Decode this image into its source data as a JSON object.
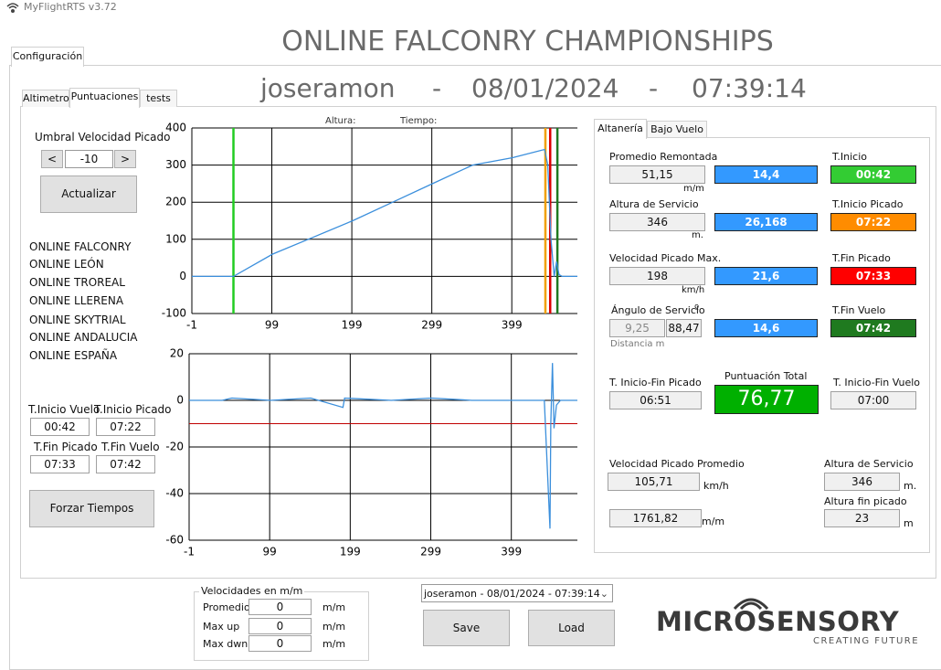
{
  "window": {
    "title": "MyFlightRTS v3.72"
  },
  "tabs": {
    "main": "Configuración",
    "sub": [
      "Altimetro",
      "Puntuaciones",
      "tests"
    ],
    "right": [
      "Altanería",
      "Bajo Vuelo"
    ]
  },
  "header": {
    "title": "ONLINE FALCONRY CHAMPIONSHIPS",
    "user": "joseramon",
    "separator": "-",
    "date": "08/01/2024",
    "time": "07:39:14"
  },
  "threshold": {
    "label": "Umbral Velocidad Picado",
    "prev": "<",
    "value": "-10",
    "next": ">",
    "button": "Actualizar"
  },
  "competitions": [
    "ONLINE FALCONRY",
    "ONLINE LEÓN",
    "ONLINE TROREAL",
    "ONLINE LLERENA",
    "ONLINE SKYTRIAL",
    "ONLINE ANDALUCIA",
    "ONLINE ESPAÑA"
  ],
  "times": {
    "labels": [
      "T.Inicio Vuelo",
      "T.Inicio Picado",
      "T.Fin Picado",
      "T.Fin Vuelo"
    ],
    "values": [
      "00:42",
      "07:22",
      "07:33",
      "07:42"
    ],
    "button": "Forzar Tiempos"
  },
  "chart_data": [
    {
      "type": "line",
      "annotations": [
        "Altura:",
        "Tiempo:"
      ],
      "x": [
        -1,
        51,
        100,
        150,
        200,
        250,
        300,
        350,
        400,
        440,
        444,
        448,
        452,
        455,
        458,
        462,
        481
      ],
      "series": [
        {
          "color": "#3b8fdc",
          "values": [
            0,
            0,
            60,
            105,
            150,
            200,
            250,
            300,
            320,
            342,
            300,
            100,
            0,
            40,
            5,
            0,
            0
          ]
        }
      ],
      "vlines": [
        {
          "x": 51,
          "color": "#22cc22"
        },
        {
          "x": 441,
          "color": "#f0a000"
        },
        {
          "x": 447,
          "color": "#dd0000"
        },
        {
          "x": 456,
          "color": "#1f7a1f"
        }
      ],
      "xlim": [
        -1,
        481
      ],
      "ylim": [
        -100,
        400
      ],
      "xticks": [
        -1,
        99,
        199,
        299,
        399
      ],
      "yticks": [
        -100,
        0,
        100,
        200,
        300,
        400
      ],
      "grid": true
    },
    {
      "type": "line",
      "x": [
        -1,
        40,
        52,
        100,
        150,
        190,
        192,
        250,
        300,
        350,
        400,
        440,
        445,
        447,
        448,
        450,
        452,
        455,
        460,
        481
      ],
      "series": [
        {
          "color": "#3b8fdc",
          "values": [
            0,
            0,
            1,
            0,
            1,
            -3,
            1,
            0,
            1,
            0,
            0,
            0,
            -40,
            -55,
            -10,
            16,
            -12,
            -2,
            0,
            0
          ]
        }
      ],
      "hlines": [
        {
          "y": -10,
          "color": "#c00000"
        }
      ],
      "xlim": [
        -1,
        481
      ],
      "ylim": [
        -60,
        20
      ],
      "xticks": [
        -1,
        99,
        199,
        299,
        399
      ],
      "yticks": [
        -60,
        -40,
        -20,
        0,
        20
      ],
      "grid": true
    }
  ],
  "results": {
    "rows": [
      {
        "label": "Promedio Remontada",
        "value": "51,15",
        "unit": "m/m",
        "score": "14,4"
      },
      {
        "label": "Altura de Servicio",
        "value": "346",
        "unit": "m.",
        "score": "26,168"
      },
      {
        "label": "Velocidad Picado Max.",
        "value": "198",
        "unit": "km/h",
        "score": "21,6"
      }
    ],
    "angle": {
      "label": "Ángulo de Servicio",
      "symbol": "º",
      "value": "9,25",
      "value2": "88,47",
      "score": "14,6",
      "note": "Distancia m"
    },
    "timers": [
      {
        "label": "T.Inicio",
        "value": "00:42",
        "color": "#33cc33"
      },
      {
        "label": "T.Inicio Picado",
        "value": "07:22",
        "color": "#ff8c00"
      },
      {
        "label": "T.Fin Picado",
        "value": "07:33",
        "color": "#ff0000"
      },
      {
        "label": "T.Fin Vuelo",
        "value": "07:42",
        "color": "#1f7a1f"
      }
    ],
    "dive_duration": {
      "label": "T. Inicio-Fin Picado",
      "value": "06:51"
    },
    "total": {
      "label": "Puntuación Total",
      "value": "76,77"
    },
    "flight_duration": {
      "label": "T. Inicio-Fin Vuelo",
      "value": "07:00"
    },
    "avg_speed": {
      "label": "Velocidad Picado Promedio",
      "value": "105,71",
      "unit": "km/h",
      "value2": "1761,82",
      "unit2": "m/m"
    },
    "heights": {
      "label": "Altura de Servicio",
      "value": "346",
      "unit": "m.",
      "label2": "Altura fin picado",
      "value2": "23",
      "unit2": "m"
    }
  },
  "speeds": {
    "title": "Velocidades en m/m",
    "rows": [
      {
        "label": "Promedio",
        "value": "0",
        "unit": "m/m"
      },
      {
        "label": "Max up",
        "value": "0",
        "unit": "m/m"
      },
      {
        "label": "Max dwn",
        "value": "0",
        "unit": "m/m"
      }
    ]
  },
  "session": {
    "selected": "joseramon - 08/01/2024 - 07:39:14",
    "save": "Save",
    "load": "Load"
  },
  "logo": {
    "name": "MICROSENSORY",
    "tagline": "CREATING FUTURE"
  }
}
